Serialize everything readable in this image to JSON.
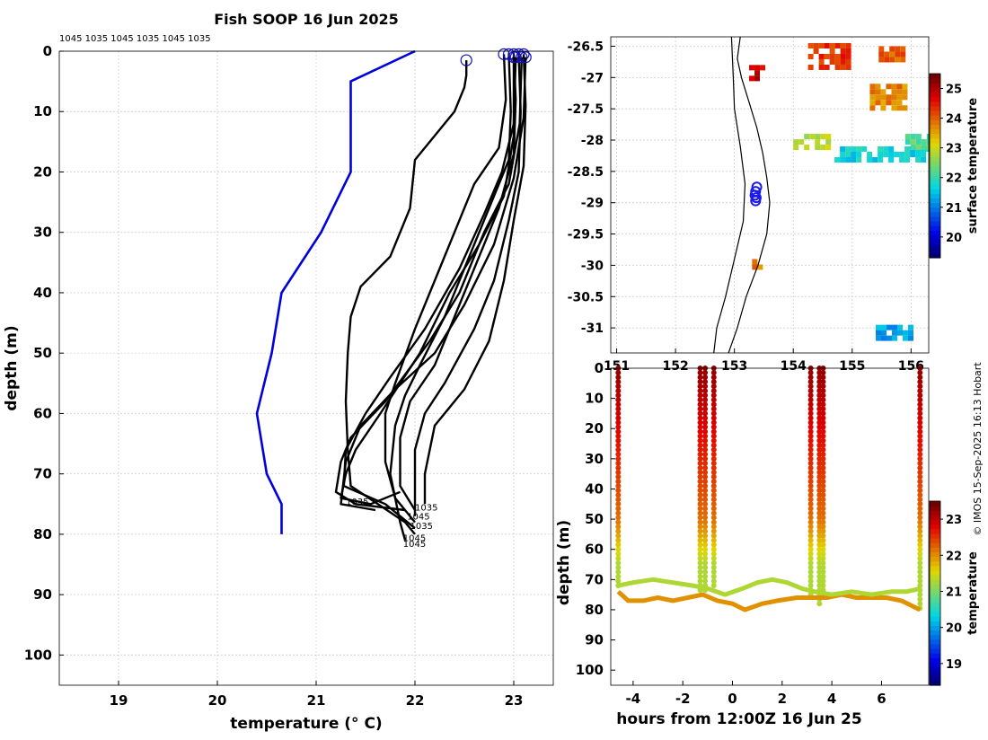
{
  "title": "Fish SOOP 16 Jun 2025",
  "top_codes": "1045 1035 1045 1035 1045 1035",
  "credit": "© IMOS 15-Sep-2025 16:13 Hobart",
  "colors": {
    "profile": "#000000",
    "climatology": "#0000dd",
    "grid": "#c8c8c8",
    "land": "#000000"
  },
  "chart_data": [
    {
      "type": "line",
      "title": "Fish SOOP 16 Jun 2025",
      "xlabel": "temperature (° C)",
      "ylabel": "depth (m)",
      "xlim": [
        18.4,
        23.4
      ],
      "ylim": [
        105,
        0
      ],
      "xticks": [
        "19",
        "20",
        "21",
        "22",
        "23"
      ],
      "yticks": [
        "0",
        "10",
        "20",
        "30",
        "40",
        "50",
        "60",
        "70",
        "80",
        "90",
        "100"
      ],
      "climatology": {
        "name": "climatology",
        "points": [
          [
            22.0,
            0.0
          ],
          [
            21.35,
            5
          ],
          [
            21.35,
            20
          ],
          [
            21.05,
            30
          ],
          [
            20.65,
            40
          ],
          [
            20.55,
            50
          ],
          [
            20.4,
            60
          ],
          [
            20.5,
            70
          ],
          [
            20.65,
            75
          ],
          [
            20.65,
            80
          ]
        ]
      },
      "profiles": [
        {
          "id": "1045",
          "points": [
            [
              22.52,
              1.5
            ],
            [
              22.52,
              4
            ],
            [
              22.5,
              6
            ],
            [
              22.4,
              10
            ],
            [
              22.2,
              14
            ],
            [
              22.0,
              18
            ],
            [
              21.95,
              26
            ],
            [
              21.75,
              34
            ],
            [
              21.45,
              39
            ],
            [
              21.35,
              44
            ],
            [
              21.32,
              50
            ],
            [
              21.3,
              58
            ],
            [
              21.32,
              66
            ],
            [
              21.35,
              72
            ],
            [
              21.9,
              78
            ],
            [
              22.0,
              80
            ]
          ]
        },
        {
          "id": "1035",
          "points": [
            [
              22.9,
              0.5
            ],
            [
              22.92,
              8
            ],
            [
              22.85,
              16
            ],
            [
              22.6,
              22
            ],
            [
              22.4,
              30
            ],
            [
              22.2,
              38
            ],
            [
              22.0,
              46
            ],
            [
              21.8,
              55
            ],
            [
              21.7,
              60
            ],
            [
              21.7,
              68
            ],
            [
              21.8,
              74
            ],
            [
              22.0,
              78
            ]
          ]
        },
        {
          "id": "1045",
          "points": [
            [
              22.95,
              0.5
            ],
            [
              22.97,
              10
            ],
            [
              22.95,
              18
            ],
            [
              22.75,
              26
            ],
            [
              22.55,
              34
            ],
            [
              22.3,
              44
            ],
            [
              22.05,
              52
            ],
            [
              21.9,
              57
            ],
            [
              21.8,
              62
            ],
            [
              21.75,
              70
            ],
            [
              21.85,
              78
            ],
            [
              21.9,
              81
            ]
          ]
        },
        {
          "id": "1035",
          "points": [
            [
              23.0,
              0.5
            ],
            [
              23.02,
              8
            ],
            [
              23.0,
              17
            ],
            [
              22.85,
              26
            ],
            [
              22.6,
              36
            ],
            [
              22.4,
              44
            ],
            [
              22.2,
              52
            ],
            [
              21.95,
              58
            ],
            [
              21.85,
              64
            ],
            [
              21.85,
              72
            ],
            [
              22.0,
              76
            ]
          ]
        },
        {
          "id": "1045",
          "points": [
            [
              23.05,
              0.5
            ],
            [
              23.07,
              10
            ],
            [
              23.05,
              20
            ],
            [
              22.95,
              28
            ],
            [
              22.8,
              38
            ],
            [
              22.6,
              46
            ],
            [
              22.3,
              55
            ],
            [
              22.1,
              60
            ],
            [
              22.0,
              66
            ],
            [
              22.0,
              72
            ],
            [
              22.0,
              77
            ]
          ]
        },
        {
          "id": "1035",
          "points": [
            [
              23.1,
              0.5
            ],
            [
              23.12,
              9
            ],
            [
              23.1,
              19
            ],
            [
              23.0,
              28
            ],
            [
              22.9,
              38
            ],
            [
              22.75,
              48
            ],
            [
              22.5,
              56
            ],
            [
              22.2,
              62
            ],
            [
              22.1,
              70
            ],
            [
              22.1,
              75
            ]
          ]
        },
        {
          "id": "1045",
          "points": [
            [
              23.08,
              1
            ],
            [
              23.06,
              12
            ],
            [
              22.95,
              22
            ],
            [
              22.7,
              30
            ],
            [
              22.45,
              40
            ],
            [
              22.15,
              48
            ],
            [
              21.7,
              58
            ],
            [
              21.35,
              64
            ],
            [
              21.25,
              68
            ],
            [
              21.2,
              73
            ],
            [
              21.4,
              75
            ],
            [
              21.9,
              76
            ]
          ]
        },
        {
          "id": "1035",
          "points": [
            [
              23.0,
              1
            ],
            [
              23.0,
              14
            ],
            [
              22.9,
              24
            ],
            [
              22.65,
              32
            ],
            [
              22.35,
              40
            ],
            [
              22.05,
              50
            ],
            [
              21.65,
              60
            ],
            [
              21.4,
              66
            ],
            [
              21.3,
              70
            ],
            [
              21.25,
              74
            ],
            [
              21.55,
              75
            ],
            [
              21.85,
              73
            ]
          ]
        },
        {
          "id": "1045",
          "points": [
            [
              23.12,
              1
            ],
            [
              23.1,
              11
            ],
            [
              23.0,
              21
            ],
            [
              22.8,
              32
            ],
            [
              22.5,
              42
            ],
            [
              22.2,
              50
            ],
            [
              21.8,
              56
            ],
            [
              21.45,
              62
            ],
            [
              21.3,
              68
            ],
            [
              21.25,
              75
            ],
            [
              21.6,
              76
            ]
          ]
        },
        {
          "id": "1035",
          "points": [
            [
              23.02,
              1
            ],
            [
              23.0,
              12
            ],
            [
              22.88,
              20
            ],
            [
              22.7,
              27
            ],
            [
              22.45,
              36
            ],
            [
              22.1,
              46
            ],
            [
              21.75,
              54
            ],
            [
              21.5,
              60
            ],
            [
              21.3,
              66
            ],
            [
              21.28,
              72
            ],
            [
              21.7,
              75
            ],
            [
              22.0,
              79
            ]
          ]
        }
      ],
      "depth_labels": [
        {
          "label": "1035",
          "t": 22.0,
          "d": 75.5
        },
        {
          "label": "1045",
          "t": 21.92,
          "d": 77
        },
        {
          "label": "1035",
          "t": 21.95,
          "d": 78.5
        },
        {
          "label": "1045",
          "t": 21.88,
          "d": 80.5
        },
        {
          "label": "1045",
          "t": 21.88,
          "d": 81.5
        },
        {
          "label": "1035",
          "t": 21.3,
          "d": 74.5
        }
      ]
    },
    {
      "type": "heatmap",
      "name": "sst-map",
      "colorbar_label": "surface temperature",
      "xlim": [
        150.9,
        156.3
      ],
      "ylim": [
        -31.4,
        -26.35
      ],
      "xticks": [
        "151",
        "152",
        "153",
        "154",
        "155",
        "156"
      ],
      "yticks": [
        "-26.5",
        "-27",
        "-27.5",
        "-28",
        "-28.5",
        "-29",
        "-29.5",
        "-30",
        "-30.5",
        "-31"
      ],
      "clim": [
        19.3,
        25.5
      ],
      "cticks": [
        "20",
        "21",
        "22",
        "23",
        "24",
        "25"
      ],
      "coast": [
        [
          153.1,
          -26.35
        ],
        [
          153.05,
          -26.7
        ],
        [
          153.12,
          -27.0
        ],
        [
          153.25,
          -27.4
        ],
        [
          153.38,
          -27.8
        ],
        [
          153.48,
          -28.2
        ],
        [
          153.55,
          -28.6
        ],
        [
          153.6,
          -29.0
        ],
        [
          153.55,
          -29.5
        ],
        [
          153.4,
          -30.0
        ],
        [
          153.2,
          -30.5
        ],
        [
          153.05,
          -31.0
        ],
        [
          152.9,
          -31.4
        ]
      ],
      "inner_coast": [
        [
          152.95,
          -26.35
        ],
        [
          152.98,
          -27.0
        ],
        [
          153.0,
          -27.5
        ],
        [
          153.1,
          -28.1
        ],
        [
          153.18,
          -28.7
        ],
        [
          153.15,
          -29.3
        ],
        [
          153.0,
          -29.9
        ],
        [
          152.85,
          -30.5
        ],
        [
          152.7,
          -31.0
        ],
        [
          152.65,
          -31.4
        ]
      ],
      "ship_positions": [
        [
          153.38,
          -28.75
        ],
        [
          153.36,
          -28.82
        ],
        [
          153.35,
          -28.88
        ],
        [
          153.37,
          -28.92
        ],
        [
          153.36,
          -28.97
        ]
      ],
      "sst_patches": [
        {
          "lon": [
            154.25,
            154.9
          ],
          "lat": [
            -26.45,
            -26.8
          ],
          "t": 24.3
        },
        {
          "lon": [
            155.45,
            155.9
          ],
          "lat": [
            -26.5,
            -26.75
          ],
          "t": 24.0
        },
        {
          "lon": [
            155.3,
            155.85
          ],
          "lat": [
            -27.1,
            -27.45
          ],
          "t": 23.7
        },
        {
          "lon": [
            153.25,
            153.45
          ],
          "lat": [
            -26.8,
            -27.0
          ],
          "t": 24.8
        },
        {
          "lon": [
            154.0,
            154.6
          ],
          "lat": [
            -27.9,
            -28.1
          ],
          "t": 22.8
        },
        {
          "lon": [
            154.7,
            156.3
          ],
          "lat": [
            -28.1,
            -28.35
          ],
          "t": 21.6
        },
        {
          "lon": [
            155.9,
            156.3
          ],
          "lat": [
            -27.9,
            -28.1
          ],
          "t": 22.2
        },
        {
          "lon": [
            155.4,
            156.0
          ],
          "lat": [
            -30.95,
            -31.15
          ],
          "t": 21.2
        },
        {
          "lon": [
            153.3,
            153.45
          ],
          "lat": [
            -29.9,
            -30.05
          ],
          "t": 23.8
        }
      ]
    },
    {
      "type": "scatter",
      "name": "section",
      "xlabel": "hours from 12:00Z 16 Jun 25",
      "ylabel": "depth (m)",
      "colorbar_label": "temperature",
      "xlim": [
        -4.9,
        7.9
      ],
      "ylim": [
        105,
        0
      ],
      "clim": [
        18.4,
        23.5
      ],
      "xticks": [
        "-4",
        "-2",
        "0",
        "2",
        "4",
        "6"
      ],
      "yticks": [
        "0",
        "10",
        "20",
        "30",
        "40",
        "50",
        "60",
        "70",
        "80",
        "90",
        "100"
      ],
      "cticks": [
        "19",
        "20",
        "21",
        "22",
        "23"
      ],
      "casts": [
        {
          "x": -4.6,
          "bottom": 72
        },
        {
          "x": -1.3,
          "bottom": 74
        },
        {
          "x": -1.1,
          "bottom": 74
        },
        {
          "x": -0.75,
          "bottom": 73
        },
        {
          "x": 3.15,
          "bottom": 75
        },
        {
          "x": 3.5,
          "bottom": 78
        },
        {
          "x": 3.65,
          "bottom": 76
        },
        {
          "x": 7.55,
          "bottom": 80
        }
      ],
      "bottom_track": [
        [
          -4.6,
          72
        ],
        [
          -4.0,
          71
        ],
        [
          -3.2,
          70
        ],
        [
          -2.4,
          71
        ],
        [
          -1.6,
          72
        ],
        [
          -1.0,
          73
        ],
        [
          -0.3,
          75
        ],
        [
          0.4,
          73
        ],
        [
          1.0,
          71
        ],
        [
          1.6,
          70
        ],
        [
          2.2,
          71
        ],
        [
          2.8,
          73
        ],
        [
          3.3,
          74
        ],
        [
          4.0,
          75
        ],
        [
          4.8,
          74
        ],
        [
          5.6,
          75
        ],
        [
          6.4,
          74
        ],
        [
          7.0,
          74
        ],
        [
          7.55,
          73
        ]
      ],
      "lower_track": [
        [
          -4.6,
          74
        ],
        [
          -4.2,
          77
        ],
        [
          -3.6,
          77
        ],
        [
          -3.0,
          76
        ],
        [
          -2.4,
          77
        ],
        [
          -1.8,
          76
        ],
        [
          -1.2,
          75
        ],
        [
          -0.6,
          77
        ],
        [
          0.0,
          78
        ],
        [
          0.5,
          80
        ],
        [
          1.2,
          78
        ],
        [
          1.8,
          77
        ],
        [
          2.6,
          76
        ],
        [
          3.2,
          76
        ],
        [
          3.8,
          76
        ],
        [
          4.4,
          75
        ],
        [
          5.0,
          76
        ],
        [
          5.6,
          76
        ],
        [
          6.2,
          76
        ],
        [
          6.8,
          77
        ],
        [
          7.3,
          79
        ],
        [
          7.55,
          80
        ]
      ]
    }
  ]
}
